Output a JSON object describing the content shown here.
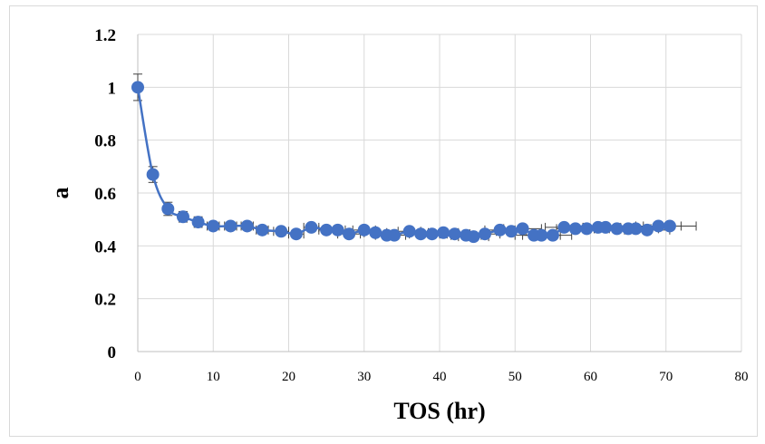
{
  "chart_data": {
    "type": "scatter",
    "title": "",
    "xlabel": "TOS (hr)",
    "ylabel": "a",
    "xlim": [
      0,
      80
    ],
    "ylim": [
      0,
      1.2
    ],
    "x_ticks": [
      "0",
      "10",
      "20",
      "30",
      "40",
      "50",
      "60",
      "70",
      "80"
    ],
    "y_ticks": [
      "0",
      "0.2",
      "0.4",
      "0.6",
      "0.8",
      "1",
      "1.2"
    ],
    "grid": true,
    "legend": "none",
    "series": [
      {
        "marker_color": "#4472C4",
        "line": "smooth",
        "error_bars": "x and y",
        "x": [
          0,
          2,
          4,
          6,
          8,
          10,
          12.3,
          14.5,
          16.5,
          19,
          21,
          23,
          25,
          26.5,
          28,
          30,
          31.5,
          33,
          34,
          36,
          37.5,
          39,
          40.5,
          42,
          43.5,
          44.5,
          46,
          48,
          49.5,
          51,
          52.5,
          53.5,
          55,
          56.5,
          58,
          59.5,
          61,
          62,
          63.5,
          65,
          66,
          67.5,
          69,
          70.5
        ],
        "y": [
          1.0,
          0.67,
          0.54,
          0.51,
          0.49,
          0.475,
          0.475,
          0.475,
          0.46,
          0.455,
          0.445,
          0.47,
          0.46,
          0.46,
          0.445,
          0.46,
          0.45,
          0.44,
          0.44,
          0.455,
          0.445,
          0.445,
          0.45,
          0.445,
          0.44,
          0.435,
          0.445,
          0.46,
          0.455,
          0.465,
          0.44,
          0.44,
          0.44,
          0.47,
          0.465,
          0.465,
          0.47,
          0.47,
          0.465,
          0.465,
          0.465,
          0.46,
          0.475,
          0.475
        ],
        "y_err": [
          0.05,
          0.03,
          0.025,
          0.02,
          0.02,
          0.015,
          0.015,
          0.015,
          0.015,
          0.015,
          0.015,
          0.015,
          0.015,
          0.015,
          0.015,
          0.015,
          0.015,
          0.015,
          0.015,
          0.015,
          0.015,
          0.015,
          0.015,
          0.015,
          0.015,
          0.015,
          0.015,
          0.015,
          0.015,
          0.015,
          0.015,
          0.015,
          0.015,
          0.015,
          0.015,
          0.015,
          0.015,
          0.015,
          0.015,
          0.015,
          0.015,
          0.015,
          0.015,
          0.015
        ],
        "x_err": [
          0,
          0,
          0,
          0,
          0,
          0.8,
          0.8,
          0.8,
          0.8,
          1,
          1,
          1,
          1,
          1,
          1.5,
          1.5,
          1.5,
          1.5,
          1.5,
          1.5,
          1.5,
          2,
          2,
          2,
          2,
          2,
          2,
          2,
          2,
          2.5,
          2.5,
          2.5,
          2.5,
          2.5,
          2.5,
          3,
          3,
          3,
          3,
          3,
          3,
          3,
          3,
          3.5
        ]
      }
    ]
  }
}
